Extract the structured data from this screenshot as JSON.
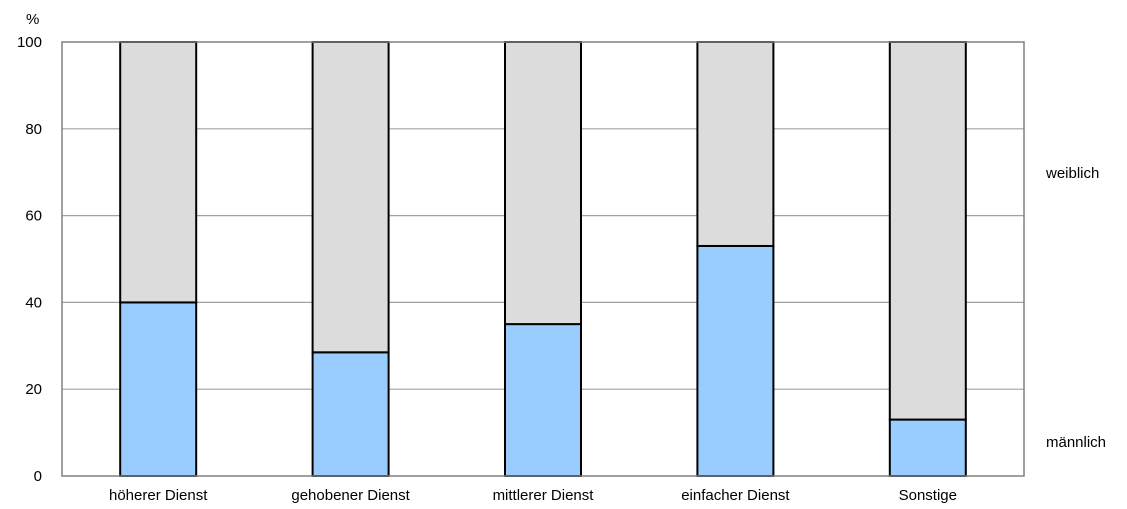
{
  "chart_data": {
    "type": "bar",
    "stacked": true,
    "title": "",
    "ylabel": "%",
    "xlabel": "",
    "ylim": [
      0,
      100
    ],
    "yticks": [
      0,
      20,
      40,
      60,
      80,
      100
    ],
    "grid": true,
    "categories": [
      "höherer Dienst",
      "gehobener Dienst",
      "mittlerer Dienst",
      "einfacher Dienst",
      "Sonstige"
    ],
    "series": [
      {
        "name": "männlich",
        "values": [
          40,
          28.5,
          35,
          53,
          13
        ],
        "color": "#99ccff"
      },
      {
        "name": "weiblich",
        "values": [
          60,
          71.5,
          65,
          47,
          87
        ],
        "color": "#dcdcdc"
      }
    ],
    "legend_placement": "right"
  }
}
